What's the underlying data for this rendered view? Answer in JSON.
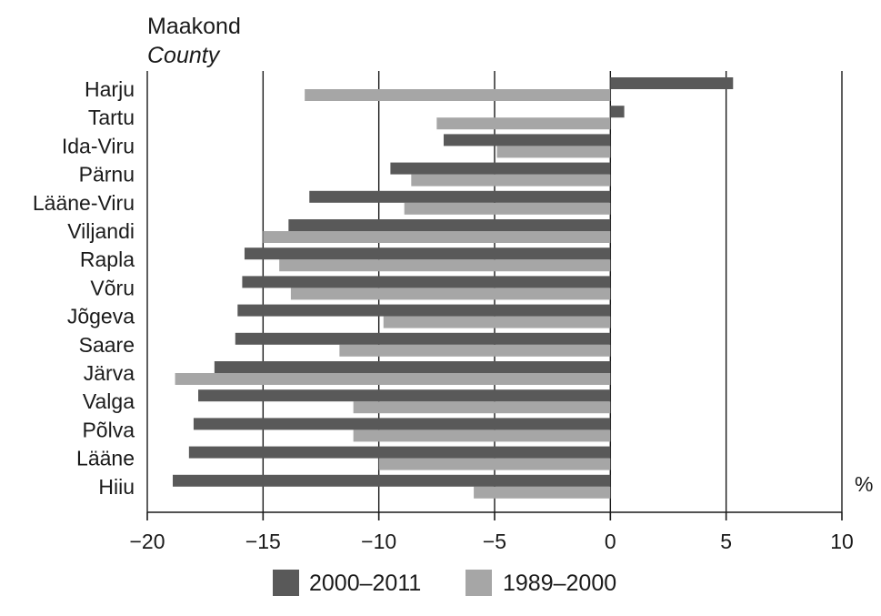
{
  "chart_data": {
    "type": "bar",
    "orientation": "horizontal",
    "ylabel": "Maakond",
    "ylabel_translation": "County",
    "unit": "%",
    "categories": [
      "Harju",
      "Tartu",
      "Ida-Viru",
      "Pärnu",
      "Lääne-Viru",
      "Viljandi",
      "Rapla",
      "Võru",
      "Jõgeva",
      "Saare",
      "Järva",
      "Valga",
      "Põlva",
      "Lääne",
      "Hiiu"
    ],
    "series": [
      {
        "name": "2000–2011",
        "color": "#595959",
        "values": [
          5.3,
          0.6,
          -7.2,
          -9.5,
          -13.0,
          -13.9,
          -15.8,
          -15.9,
          -16.1,
          -16.2,
          -17.1,
          -17.8,
          -18.0,
          -18.2,
          -18.9
        ]
      },
      {
        "name": "1989–2000",
        "color": "#a6a6a6",
        "values": [
          -13.2,
          -7.5,
          -4.9,
          -8.6,
          -8.9,
          -15.0,
          -14.3,
          -13.8,
          -9.8,
          -11.7,
          -18.8,
          -11.1,
          -11.1,
          -10.0,
          -5.9
        ]
      }
    ],
    "xlim": [
      -20,
      10
    ],
    "xticks": [
      -20,
      -15,
      -10,
      -5,
      0,
      5,
      10
    ],
    "xtick_labels": [
      "−20",
      "−15",
      "−10",
      "−5",
      "0",
      "5",
      "10"
    ],
    "grid": "vertical",
    "legend_position": "bottom-center"
  }
}
